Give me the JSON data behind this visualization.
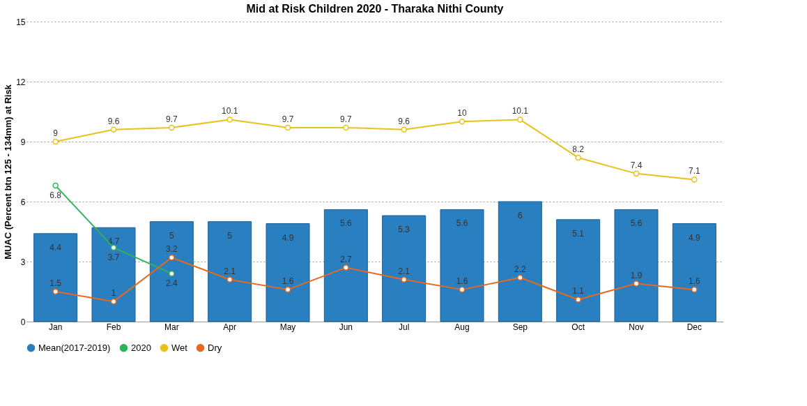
{
  "chart_data": {
    "type": "bar",
    "title": "Mid at Risk Children 2020 - Tharaka Nithi County",
    "ylabel": "MUAC (Percent btn 125 - 134mm) at Risk",
    "categories": [
      "Jan",
      "Feb",
      "Mar",
      "Apr",
      "May",
      "Jun",
      "Jul",
      "Aug",
      "Sep",
      "Oct",
      "Nov",
      "Dec"
    ],
    "series": [
      {
        "name": "Mean(2017-2019)",
        "color": "#2a7fc1",
        "values": [
          4.4,
          4.7,
          5,
          5,
          4.9,
          5.6,
          5.3,
          5.6,
          6,
          5.1,
          5.6,
          4.9
        ]
      },
      {
        "name": "2020",
        "type": "line",
        "color": "#2db35a",
        "values": [
          6.8,
          3.7,
          2.4,
          null,
          null,
          null,
          null,
          null,
          null,
          null,
          null,
          null
        ]
      },
      {
        "name": "Wet",
        "type": "line",
        "color": "#e8c21a",
        "values": [
          9,
          9.6,
          9.7,
          10.1,
          9.7,
          9.7,
          9.6,
          10,
          10.1,
          8.2,
          7.4,
          7.1
        ]
      },
      {
        "name": "Dry",
        "type": "line",
        "color": "#e8691e",
        "values": [
          1.5,
          1,
          3.2,
          2.1,
          1.6,
          2.7,
          2.1,
          1.6,
          2.2,
          1.1,
          1.9,
          1.6
        ]
      }
    ],
    "ylim": [
      0,
      15
    ],
    "yticks": [
      0,
      3,
      6,
      9,
      12,
      15
    ],
    "grid": "y",
    "legend": "bottom",
    "data_labels": true,
    "marker": "circle"
  }
}
